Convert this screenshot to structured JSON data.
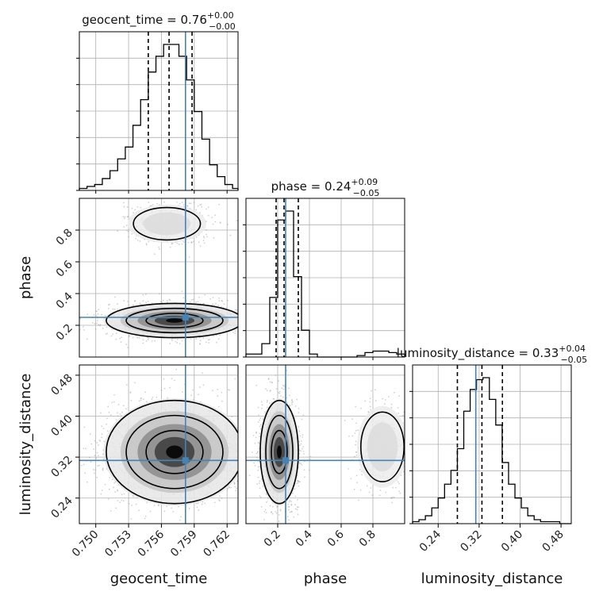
{
  "chart_data": {
    "type": "corner",
    "parameters": [
      {
        "name": "geocent_time",
        "axis_label": "geocent_time",
        "title": {
          "prefix": "geocent_time = ",
          "value": "0.76",
          "plus": "+0.00",
          "minus": "−0.00"
        },
        "range": [
          0.7485,
          0.763
        ],
        "ticks": [
          0.75,
          0.753,
          0.756,
          0.759,
          0.762
        ],
        "tick_labels": [
          "0.750",
          "0.753",
          "0.756",
          "0.759",
          "0.762"
        ],
        "quantiles": [
          0.7548,
          0.7567,
          0.7588
        ],
        "truth": 0.7582,
        "hist_edges": [
          0.7485,
          0.7492,
          0.7499,
          0.7506,
          0.7513,
          0.752,
          0.7527,
          0.7534,
          0.7541,
          0.7548,
          0.7555,
          0.7562,
          0.7569,
          0.7576,
          0.7583,
          0.759,
          0.7597,
          0.7604,
          0.7611,
          0.7618,
          0.7625,
          0.763
        ],
        "hist_counts": [
          1,
          2,
          3,
          6,
          10,
          16,
          22,
          33,
          46,
          60,
          68,
          74,
          74,
          68,
          56,
          40,
          26,
          13,
          7,
          3,
          1
        ]
      },
      {
        "name": "phase",
        "axis_label": "phase",
        "title": {
          "prefix": "phase = ",
          "value": "0.24",
          "plus": "+0.09",
          "minus": "−0.05"
        },
        "range": [
          0.0,
          1.0
        ],
        "ticks": [
          0.2,
          0.4,
          0.6,
          0.8
        ],
        "tick_labels": [
          "0.2",
          "0.4",
          "0.6",
          "0.8"
        ],
        "quantiles": [
          0.19,
          0.24,
          0.33
        ],
        "truth": 0.25,
        "hist_edges": [
          0.0,
          0.05,
          0.1,
          0.15,
          0.2,
          0.25,
          0.3,
          0.35,
          0.4,
          0.45,
          0.5,
          0.55,
          0.6,
          0.65,
          0.7,
          0.75,
          0.8,
          0.85,
          0.9,
          0.95,
          1.0
        ],
        "hist_counts": [
          2,
          2,
          9,
          40,
          92,
          98,
          54,
          18,
          2,
          0,
          0,
          0,
          0,
          0,
          1,
          3,
          4,
          4,
          3,
          2
        ]
      },
      {
        "name": "luminosity_distance",
        "axis_label": "luminosity_distance",
        "title": {
          "prefix": "luminosity_distance = ",
          "value": "0.33",
          "plus": "+0.04",
          "minus": "−0.05"
        },
        "range": [
          0.19,
          0.5
        ],
        "ticks": [
          0.24,
          0.32,
          0.4,
          0.48
        ],
        "tick_labels": [
          "0.24",
          "0.32",
          "0.40",
          "0.48"
        ],
        "quantiles": [
          0.2775,
          0.3255,
          0.3655
        ],
        "truth": 0.3135,
        "hist_edges": [
          0.19,
          0.2025,
          0.215,
          0.2275,
          0.24,
          0.2525,
          0.265,
          0.2775,
          0.29,
          0.3025,
          0.315,
          0.3275,
          0.34,
          0.3525,
          0.365,
          0.3775,
          0.39,
          0.4025,
          0.415,
          0.4275,
          0.44,
          0.4525,
          0.465,
          0.4775,
          0.49,
          0.5
        ],
        "hist_counts": [
          1,
          2,
          4,
          8,
          13,
          20,
          27,
          38,
          57,
          68,
          73,
          74,
          63,
          50,
          31,
          20,
          13,
          8,
          4,
          2,
          1,
          1,
          1,
          0,
          0
        ]
      }
    ],
    "truth_color": "#4682b4",
    "hist_color": "#000000",
    "grid": true,
    "pairs": [
      {
        "x_param": "geocent_time",
        "y_param": "phase",
        "modes": [
          {
            "cx": 0.7572,
            "cy": 0.23,
            "sx": 0.0026,
            "sy": 0.045,
            "weight": 0.82
          },
          {
            "cx": 0.7565,
            "cy": 0.84,
            "sx": 0.0018,
            "sy": 0.06,
            "weight": 0.18
          }
        ]
      },
      {
        "x_param": "geocent_time",
        "y_param": "luminosity_distance",
        "modes": [
          {
            "cx": 0.7572,
            "cy": 0.33,
            "sx": 0.0026,
            "sy": 0.042,
            "weight": 1.0
          }
        ]
      },
      {
        "x_param": "phase",
        "y_param": "luminosity_distance",
        "modes": [
          {
            "cx": 0.21,
            "cy": 0.33,
            "sx": 0.05,
            "sy": 0.042,
            "weight": 0.82
          },
          {
            "cx": 0.86,
            "cy": 0.34,
            "sx": 0.08,
            "sy": 0.04,
            "weight": 0.18
          }
        ]
      }
    ]
  }
}
